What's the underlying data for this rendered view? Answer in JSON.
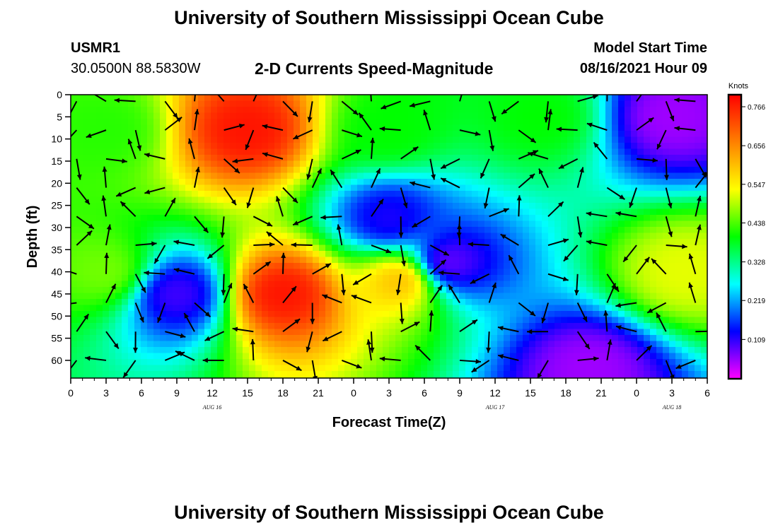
{
  "header": {
    "title": "University of Southern Mississippi Ocean Cube",
    "station": "USMR1",
    "coords": "30.0500N  88.5830W",
    "subtitle": "2-D Currents Speed-Magnitude",
    "model_start_label": "Model Start Time",
    "model_start_value": "08/16/2021 Hour 09"
  },
  "footer": {
    "title": "University of Southern Mississippi Ocean Cube"
  },
  "chart_data": {
    "type": "heatmap",
    "xlabel": "Forecast Time(Z)",
    "ylabel": "Depth (ft)",
    "x_ticks": [
      "0",
      "3",
      "6",
      "9",
      "12",
      "15",
      "18",
      "21",
      "0",
      "3",
      "6",
      "9",
      "12",
      "15",
      "18",
      "21",
      "0",
      "3",
      "6"
    ],
    "date_labels": [
      {
        "tick_index": 12,
        "label": "AUG 16"
      },
      {
        "tick_index": 36,
        "label": "AUG 17"
      },
      {
        "tick_index": 51,
        "label": "AUG 18"
      }
    ],
    "y_ticks": [
      0,
      5,
      10,
      15,
      20,
      25,
      30,
      35,
      40,
      45,
      50,
      55,
      60
    ],
    "x_range_hours": [
      0,
      54
    ],
    "y_range_ft": [
      0,
      64
    ],
    "colorbar": {
      "unit": "Knots",
      "ticks": [
        "0.766",
        "0.656",
        "0.547",
        "0.438",
        "0.328",
        "0.219",
        "0.109"
      ],
      "tick_values": [
        0.766,
        0.656,
        0.547,
        0.438,
        0.328,
        0.219,
        0.109
      ],
      "min": 0.0,
      "max": 0.8,
      "colormap": [
        "#ff00ff",
        "#8000ff",
        "#0000ff",
        "#0080ff",
        "#00ffff",
        "#00ff80",
        "#00ff00",
        "#80ff00",
        "#ffff00",
        "#ffc000",
        "#ff8000",
        "#ff4000",
        "#ff0000"
      ]
    },
    "speed_features": [
      {
        "hour": 15,
        "depth": 8,
        "value": 0.78
      },
      {
        "hour": 18,
        "depth": 45,
        "value": 0.78
      },
      {
        "hour": 28,
        "depth": 42,
        "value": 0.6
      },
      {
        "hour": 52,
        "depth": 40,
        "value": 0.52
      },
      {
        "hour": 27,
        "depth": 28,
        "value": 0.12
      },
      {
        "hour": 32,
        "depth": 38,
        "value": 0.08
      },
      {
        "hour": 51,
        "depth": 5,
        "value": 0.05
      },
      {
        "hour": 9,
        "depth": 45,
        "value": 0.1
      },
      {
        "hour": 44,
        "depth": 62,
        "value": 0.05
      },
      {
        "hour": 3,
        "depth": 40,
        "value": 0.46
      },
      {
        "hour": 3,
        "depth": 8,
        "value": 0.42
      },
      {
        "hour": 27,
        "depth": 8,
        "value": 0.4
      },
      {
        "hour": 40,
        "depth": 5,
        "value": 0.4
      }
    ]
  }
}
